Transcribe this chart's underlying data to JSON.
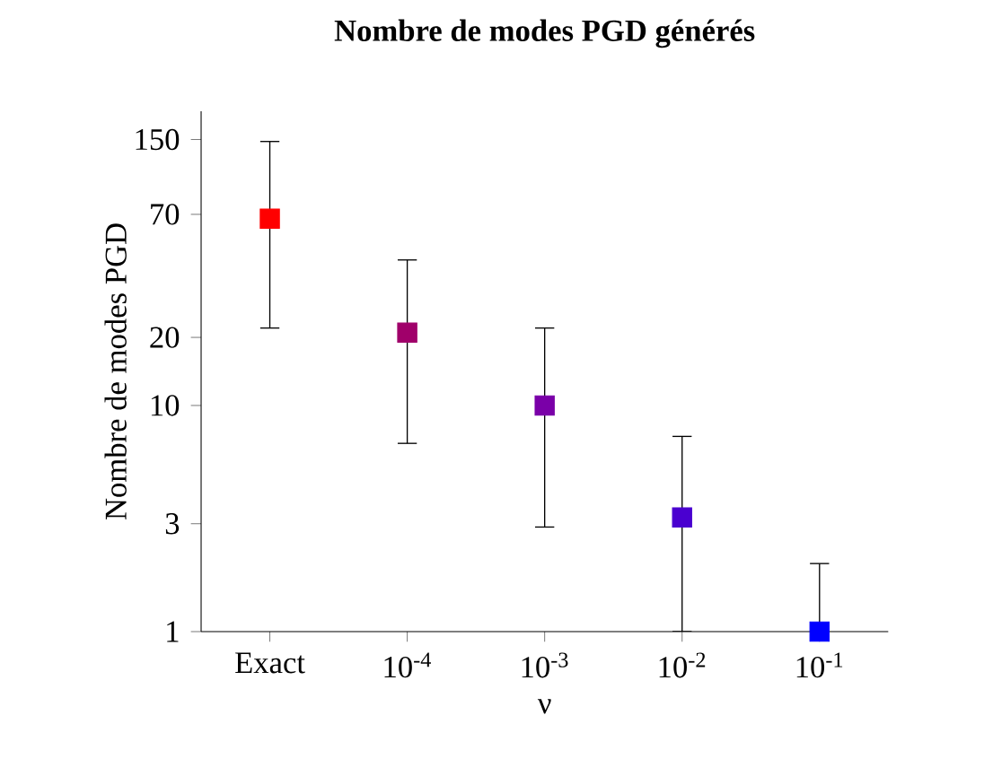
{
  "chart_data": {
    "type": "scatter",
    "title": "Nombre de modes PGD générés",
    "xlabel": "ν",
    "ylabel": "Nombre de modes PGD",
    "categories": [
      "Exact",
      "10$^{-4}$",
      "10$^{-3}$",
      "10$^{-2}$",
      "10$^{-1}$"
    ],
    "values": [
      67,
      21,
      10,
      3.2,
      1
    ],
    "errors": [
      [
        22,
        147
      ],
      [
        6.8,
        44
      ],
      [
        2.9,
        22
      ],
      [
        1,
        7.3
      ],
      [
        1,
        2
      ]
    ],
    "colors": [
      "#ff0000",
      "#a0006a",
      "#7a00a8",
      "#4a00d0",
      "#0000ff"
    ],
    "log": "y",
    "ylim": [
      1,
      200
    ],
    "yticks": [
      1,
      3,
      10,
      20,
      70,
      150
    ],
    "marker": "square"
  }
}
